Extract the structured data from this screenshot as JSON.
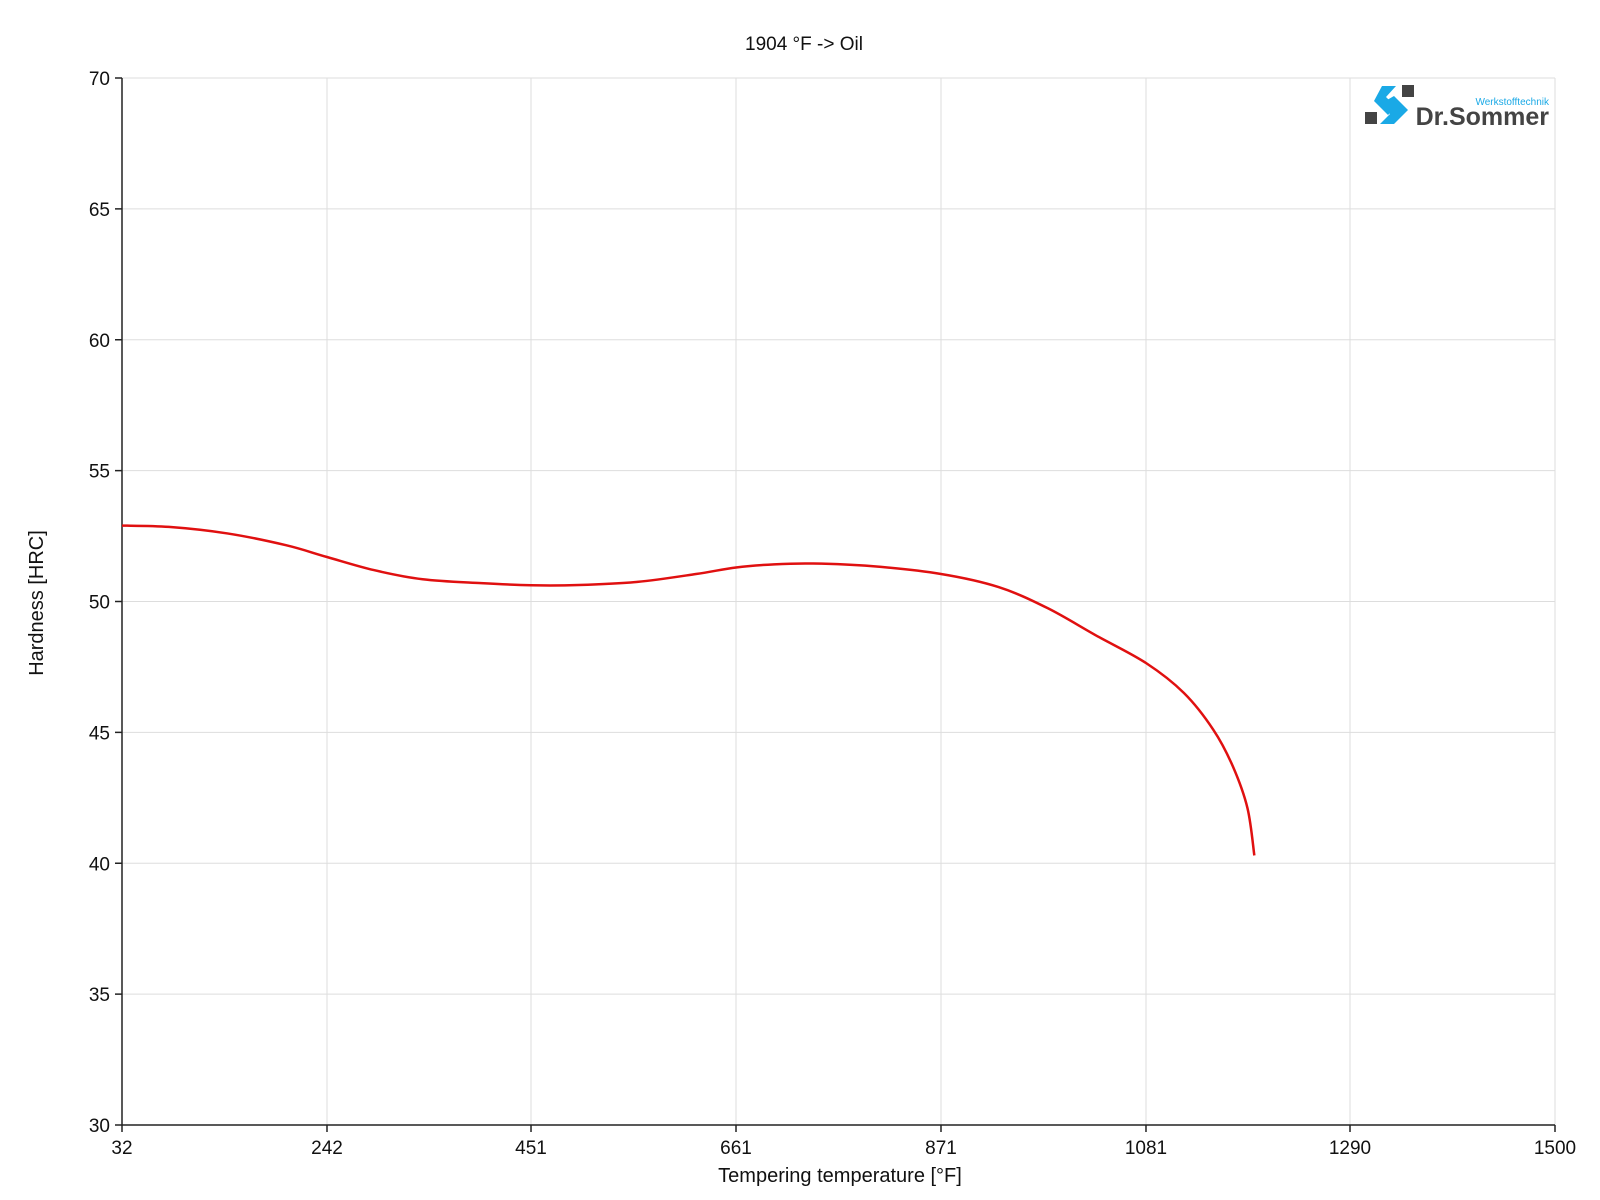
{
  "chart_data": {
    "type": "line",
    "title": "1904 °F -> Oil",
    "xlabel": "Tempering temperature [°F]",
    "ylabel": "Hardness [HRC]",
    "xlim": [
      32,
      1500
    ],
    "ylim": [
      30,
      70
    ],
    "x_ticks": [
      32,
      242,
      451,
      661,
      871,
      1081,
      1290,
      1500
    ],
    "y_ticks": [
      30,
      35,
      40,
      45,
      50,
      55,
      60,
      65,
      70
    ],
    "grid": true,
    "series": [
      {
        "color": "#e01010",
        "x": [
          32,
          80,
          140,
          200,
          242,
          290,
          340,
          400,
          451,
          500,
          560,
          620,
          661,
          700,
          740,
          800,
          871,
          930,
          980,
          1030,
          1081,
          1120,
          1150,
          1170,
          1185,
          1192
        ],
        "y": [
          52.9,
          52.85,
          52.6,
          52.15,
          51.7,
          51.2,
          50.85,
          50.7,
          50.62,
          50.63,
          50.75,
          51.05,
          51.3,
          51.42,
          51.45,
          51.35,
          51.05,
          50.55,
          49.75,
          48.7,
          47.65,
          46.5,
          45.1,
          43.7,
          42.1,
          40.3
        ]
      }
    ]
  },
  "logo": {
    "subtitle": "Werkstofftechnik",
    "name": "Dr.Sommer",
    "colors": {
      "blue": "#1aa9e6",
      "dark": "#444444"
    }
  }
}
